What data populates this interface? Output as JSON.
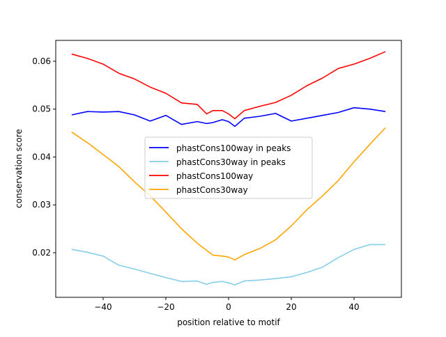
{
  "chart_data": {
    "type": "line",
    "title": "",
    "xlabel": "position relative to motif",
    "ylabel": "conservation score",
    "xlim": [
      -55.1,
      55.1
    ],
    "ylim": [
      0.01069,
      0.06436
    ],
    "xticks": [
      -40,
      -20,
      0,
      20,
      40
    ],
    "xtick_labels": [
      "−40",
      "−20",
      "0",
      "20",
      "40"
    ],
    "yticks": [
      0.02,
      0.03,
      0.04,
      0.05,
      0.06
    ],
    "ytick_labels": [
      "0.02",
      "0.03",
      "0.04",
      "0.05",
      "0.06"
    ],
    "legend_position": "center",
    "x": [
      -50,
      -45,
      -40,
      -35,
      -30,
      -25,
      -20,
      -15,
      -10,
      -7,
      -5,
      -2,
      0,
      2,
      5,
      10,
      15,
      20,
      25,
      30,
      35,
      40,
      45,
      50
    ],
    "series": [
      {
        "name": "phastCons100way in peaks",
        "color": "#0000ff",
        "values": [
          0.0488,
          0.0495,
          0.0494,
          0.0495,
          0.0488,
          0.0475,
          0.0487,
          0.0468,
          0.0474,
          0.047,
          0.0472,
          0.0478,
          0.0474,
          0.0464,
          0.0481,
          0.0485,
          0.0491,
          0.0475,
          0.0481,
          0.0487,
          0.0493,
          0.0503,
          0.05,
          0.0495
        ]
      },
      {
        "name": "phastCons30way in peaks",
        "color": "#87ceeb",
        "values": [
          0.0207,
          0.0201,
          0.0193,
          0.0174,
          0.0166,
          0.0157,
          0.0148,
          0.014,
          0.0141,
          0.0134,
          0.0138,
          0.014,
          0.0137,
          0.0133,
          0.0141,
          0.0143,
          0.0146,
          0.015,
          0.0159,
          0.017,
          0.019,
          0.0207,
          0.0217,
          0.0217
        ]
      },
      {
        "name": "phastCons100way",
        "color": "#ff0000",
        "values": [
          0.0615,
          0.0606,
          0.0594,
          0.0575,
          0.0563,
          0.0546,
          0.0533,
          0.0513,
          0.051,
          0.049,
          0.0497,
          0.0497,
          0.049,
          0.048,
          0.0497,
          0.0506,
          0.0514,
          0.0529,
          0.0549,
          0.0565,
          0.0585,
          0.0594,
          0.0606,
          0.062
        ]
      },
      {
        "name": "phastCons30way",
        "color": "#ffa500",
        "values": [
          0.0452,
          0.043,
          0.0405,
          0.038,
          0.0348,
          0.0319,
          0.0285,
          0.025,
          0.022,
          0.0205,
          0.0195,
          0.0193,
          0.0191,
          0.0185,
          0.0196,
          0.0209,
          0.0227,
          0.0256,
          0.029,
          0.0319,
          0.0351,
          0.039,
          0.0426,
          0.0461
        ]
      }
    ]
  }
}
